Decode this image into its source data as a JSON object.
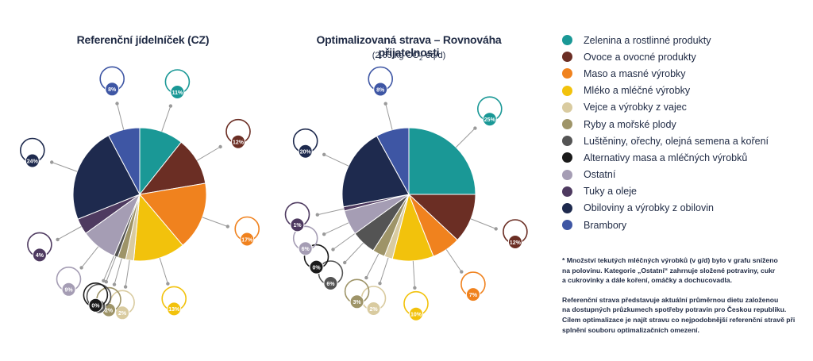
{
  "legend": [
    {
      "label": "Zelenina a rostlinné produkty",
      "color": "#1a9896"
    },
    {
      "label": "Ovoce a ovocné produkty",
      "color": "#6b2e24"
    },
    {
      "label": "Maso a masné výrobky",
      "color": "#f0821e"
    },
    {
      "label": "Mléko a mléčné výrobky",
      "color": "#f2c20c"
    },
    {
      "label": "Vejce a výrobky z vajec",
      "color": "#d9cba0"
    },
    {
      "label": "Ryby a mořské plody",
      "color": "#9e9468"
    },
    {
      "label": "Luštěniny, ořechy, olejná semena a koření",
      "color": "#545454"
    },
    {
      "label": "Alternativy masa a mléčných výrobků",
      "color": "#1a1a1a"
    },
    {
      "label": "Ostatní",
      "color": "#a59db4"
    },
    {
      "label": "Tuky a oleje",
      "color": "#4e3a60"
    },
    {
      "label": "Obiloviny a výrobky z obilovin",
      "color": "#1e2a4e"
    },
    {
      "label": "Brambory",
      "color": "#3e56a4"
    }
  ],
  "chart_data": [
    {
      "type": "pie",
      "title": "Referenční jídelníček (CZ)",
      "subtitle": "",
      "labels": [
        "Zelenina a rostlinné produkty",
        "Ovoce a ovocné produkty",
        "Maso a masné výrobky",
        "Mléko a mléčné výrobky",
        "Vejce a výrobky z vajec",
        "Ryby a mořské plody",
        "Luštěniny, ořechy, olejná semena a koření",
        "Alternativy masa a mléčných výrobků",
        "Ostatní",
        "Tuky a oleje",
        "Obiloviny a výrobky z obilovin",
        "Brambory"
      ],
      "values": [
        11,
        12,
        17,
        13,
        2,
        2,
        1,
        0,
        9,
        4,
        24,
        8
      ],
      "value_labels": [
        "11%",
        "12%",
        "17%",
        "13%",
        "2%",
        "2%",
        "1%",
        "0%",
        "9%",
        "4%",
        "24%",
        "8%"
      ]
    },
    {
      "type": "pie",
      "title": "Optimalizovaná strava – Rovnováha přijatelnosti",
      "subtitle": "(2.65 kg CO2-eq/d)",
      "labels": [
        "Zelenina a rostlinné produkty",
        "Ovoce a ovocné produkty",
        "Maso a masné výrobky",
        "Mléko a mléčné výrobky",
        "Vejce a výrobky z vajec",
        "Ryby a mořské plody",
        "Luštěniny, ořechy, olejná semena a koření",
        "Alternativy masa a mléčných výrobků",
        "Ostatní",
        "Tuky a oleje",
        "Obiloviny a výrobky z obilovin",
        "Brambory"
      ],
      "values": [
        25,
        12,
        7,
        10,
        2,
        3,
        6,
        0,
        6,
        1,
        20,
        8
      ],
      "value_labels": [
        "25%",
        "12%",
        "7%",
        "10%",
        "2%",
        "3%",
        "6%",
        "0%",
        "6%",
        "1%",
        "20%",
        "8%"
      ]
    }
  ],
  "notes": {
    "note1": "* Množství tekutých mléčných výrobků (v g/d) bylo v grafu sníženo\nna polovinu. Kategorie „Ostatní“ zahrnuje složené potraviny, cukr\na cukrovinky a dále koření, omáčky a dochucovadla.",
    "note2": "Referenční strava představuje aktuální průměrnou dietu založenou\nna dostupných průzkumech spotřeby potravin pro Českou republiku.\nCílem optimalizace je najít stravu co nejpodobnější referenční stravě při\nsplnění souboru optimalizačních omezení."
  }
}
